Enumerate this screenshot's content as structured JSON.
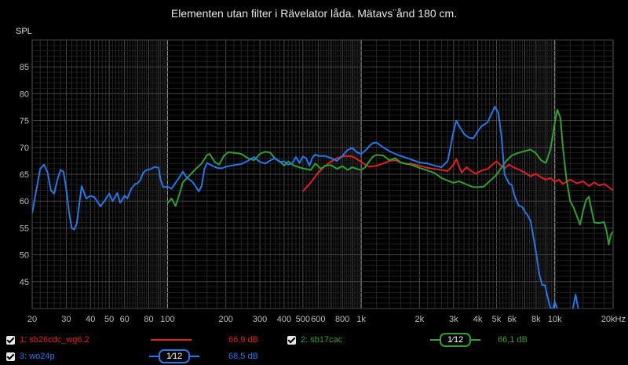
{
  "chart_data": {
    "type": "line",
    "title": "Elementen utan filter i Rävelator låda. Mätavs¨ånd 180 cm.",
    "ylabel": "SPL",
    "xlabel": "",
    "x_scale": "log",
    "xlim": [
      20,
      20000
    ],
    "ylim": [
      40,
      90
    ],
    "grid": true,
    "y_ticks": [
      45,
      50,
      55,
      60,
      65,
      70,
      75,
      80,
      85
    ],
    "x_ticks": [
      {
        "v": 20,
        "l": "20"
      },
      {
        "v": 30,
        "l": "30"
      },
      {
        "v": 40,
        "l": "40"
      },
      {
        "v": 50,
        "l": "50"
      },
      {
        "v": 60,
        "l": "60"
      },
      {
        "v": 80,
        "l": "80"
      },
      {
        "v": 100,
        "l": "100"
      },
      {
        "v": 200,
        "l": "200"
      },
      {
        "v": 300,
        "l": "300"
      },
      {
        "v": 400,
        "l": "400"
      },
      {
        "v": 500,
        "l": "500"
      },
      {
        "v": 600,
        "l": "600"
      },
      {
        "v": 800,
        "l": "800"
      },
      {
        "v": 1000,
        "l": "1k"
      },
      {
        "v": 2000,
        "l": "2k"
      },
      {
        "v": 3000,
        "l": "3k"
      },
      {
        "v": 4000,
        "l": "4k"
      },
      {
        "v": 5000,
        "l": "5k"
      },
      {
        "v": 6000,
        "l": "6k"
      },
      {
        "v": 8000,
        "l": "8k"
      },
      {
        "v": 10000,
        "l": "10k"
      },
      {
        "v": 20000,
        "l": "20kHz"
      }
    ],
    "series": [
      {
        "name": "1: sb26cdc_wg6.2",
        "color": "#e02020",
        "avg": "66,9 dB",
        "smoothing": "",
        "points": [
          [
            500,
            61.8
          ],
          [
            550,
            63.5
          ],
          [
            600,
            65.3
          ],
          [
            650,
            66.5
          ],
          [
            700,
            67.4
          ],
          [
            750,
            68.0
          ],
          [
            800,
            68.3
          ],
          [
            850,
            68.4
          ],
          [
            900,
            68.3
          ],
          [
            950,
            67.8
          ],
          [
            1000,
            67.3
          ],
          [
            1050,
            66.8
          ],
          [
            1100,
            66.4
          ],
          [
            1200,
            66.6
          ],
          [
            1300,
            67.0
          ],
          [
            1400,
            67.5
          ],
          [
            1500,
            67.6
          ],
          [
            1600,
            67.2
          ],
          [
            1700,
            66.9
          ],
          [
            1800,
            67.0
          ],
          [
            2000,
            66.6
          ],
          [
            2200,
            66.2
          ],
          [
            2400,
            66.0
          ],
          [
            2600,
            65.8
          ],
          [
            2800,
            65.6
          ],
          [
            3000,
            66.8
          ],
          [
            3100,
            67.8
          ],
          [
            3200,
            66.5
          ],
          [
            3300,
            65.3
          ],
          [
            3500,
            66.3
          ],
          [
            3700,
            65.6
          ],
          [
            3900,
            65.1
          ],
          [
            4200,
            65.7
          ],
          [
            4500,
            66.0
          ],
          [
            4800,
            66.9
          ],
          [
            5000,
            67.4
          ],
          [
            5200,
            66.8
          ],
          [
            5500,
            66.1
          ],
          [
            5800,
            66.8
          ],
          [
            6200,
            66.2
          ],
          [
            6600,
            65.8
          ],
          [
            7000,
            65.3
          ],
          [
            7500,
            64.6
          ],
          [
            8000,
            65.1
          ],
          [
            8500,
            64.4
          ],
          [
            9000,
            64.0
          ],
          [
            9500,
            64.3
          ],
          [
            10000,
            63.6
          ],
          [
            10500,
            64.0
          ],
          [
            11000,
            63.2
          ],
          [
            12000,
            64.0
          ],
          [
            13000,
            63.3
          ],
          [
            14000,
            63.7
          ],
          [
            15000,
            62.8
          ],
          [
            16000,
            63.5
          ],
          [
            17000,
            62.9
          ],
          [
            18000,
            63.2
          ],
          [
            19000,
            62.6
          ],
          [
            20000,
            62.0
          ]
        ]
      },
      {
        "name": "2: sb17cac",
        "color": "#2ea02e",
        "avg": "66,1 dB",
        "smoothing": "1⁄12",
        "points": [
          [
            100,
            59.6
          ],
          [
            105,
            60.5
          ],
          [
            110,
            59.1
          ],
          [
            115,
            61.2
          ],
          [
            120,
            63.5
          ],
          [
            130,
            64.8
          ],
          [
            140,
            66.0
          ],
          [
            150,
            67.0
          ],
          [
            160,
            68.6
          ],
          [
            165,
            68.8
          ],
          [
            175,
            67.3
          ],
          [
            185,
            66.8
          ],
          [
            195,
            68.4
          ],
          [
            205,
            69.1
          ],
          [
            220,
            69.0
          ],
          [
            240,
            68.8
          ],
          [
            260,
            68.0
          ],
          [
            280,
            67.6
          ],
          [
            300,
            68.8
          ],
          [
            320,
            69.2
          ],
          [
            340,
            69.0
          ],
          [
            360,
            67.9
          ],
          [
            380,
            67.4
          ],
          [
            400,
            66.6
          ],
          [
            420,
            67.4
          ],
          [
            450,
            66.6
          ],
          [
            500,
            66.1
          ],
          [
            550,
            65.8
          ],
          [
            580,
            67.0
          ],
          [
            620,
            66.0
          ],
          [
            650,
            66.6
          ],
          [
            700,
            66.7
          ],
          [
            750,
            66.0
          ],
          [
            800,
            66.5
          ],
          [
            850,
            65.8
          ],
          [
            900,
            66.3
          ],
          [
            950,
            66.0
          ],
          [
            1000,
            65.8
          ],
          [
            1050,
            66.3
          ],
          [
            1100,
            67.4
          ],
          [
            1150,
            68.3
          ],
          [
            1200,
            68.6
          ],
          [
            1300,
            68.5
          ],
          [
            1400,
            67.6
          ],
          [
            1500,
            68.0
          ],
          [
            1600,
            67.2
          ],
          [
            1800,
            66.8
          ],
          [
            2000,
            66.2
          ],
          [
            2200,
            65.7
          ],
          [
            2400,
            65.2
          ],
          [
            2600,
            64.3
          ],
          [
            2800,
            63.8
          ],
          [
            3000,
            63.4
          ],
          [
            3200,
            63.7
          ],
          [
            3500,
            63.1
          ],
          [
            3800,
            62.6
          ],
          [
            4000,
            62.6
          ],
          [
            4300,
            62.7
          ],
          [
            4600,
            63.7
          ],
          [
            5000,
            64.9
          ],
          [
            5300,
            66.2
          ],
          [
            5600,
            67.4
          ],
          [
            6000,
            68.5
          ],
          [
            6500,
            69.0
          ],
          [
            7000,
            69.3
          ],
          [
            7500,
            69.6
          ],
          [
            8000,
            68.9
          ],
          [
            8500,
            67.6
          ],
          [
            9000,
            67.1
          ],
          [
            9500,
            69.7
          ],
          [
            10000,
            74.5
          ],
          [
            10300,
            77.0
          ],
          [
            10700,
            75.5
          ],
          [
            11000,
            70.0
          ],
          [
            11500,
            64.0
          ],
          [
            12000,
            60.0
          ],
          [
            12500,
            58.8
          ],
          [
            13000,
            57.2
          ],
          [
            13500,
            55.6
          ],
          [
            14000,
            58.2
          ],
          [
            14500,
            60.2
          ],
          [
            15000,
            60.8
          ],
          [
            15500,
            58.2
          ],
          [
            16000,
            56.0
          ],
          [
            17000,
            55.9
          ],
          [
            18000,
            56.1
          ],
          [
            18500,
            54.5
          ],
          [
            19000,
            51.9
          ],
          [
            19500,
            53.8
          ],
          [
            20000,
            54.3
          ]
        ]
      },
      {
        "name": "3: wo24p",
        "color": "#2278e8",
        "avg": "68,5 dB",
        "smoothing": "1⁄12",
        "points": [
          [
            20,
            57.8
          ],
          [
            21,
            62.0
          ],
          [
            22,
            66.0
          ],
          [
            23,
            66.8
          ],
          [
            24,
            65.4
          ],
          [
            25,
            62.0
          ],
          [
            26,
            61.4
          ],
          [
            27,
            64.0
          ],
          [
            28,
            65.8
          ],
          [
            29,
            65.5
          ],
          [
            30,
            62.3
          ],
          [
            31,
            58.0
          ],
          [
            32,
            55.0
          ],
          [
            33,
            54.7
          ],
          [
            34,
            55.8
          ],
          [
            36,
            62.8
          ],
          [
            38,
            60.5
          ],
          [
            40,
            61.0
          ],
          [
            42,
            60.7
          ],
          [
            45,
            59.0
          ],
          [
            47,
            59.9
          ],
          [
            50,
            61.4
          ],
          [
            52,
            60.0
          ],
          [
            55,
            61.5
          ],
          [
            57,
            59.7
          ],
          [
            60,
            61.0
          ],
          [
            62,
            60.5
          ],
          [
            65,
            62.3
          ],
          [
            68,
            63.2
          ],
          [
            70,
            63.3
          ],
          [
            72,
            63.8
          ],
          [
            75,
            65.3
          ],
          [
            78,
            65.8
          ],
          [
            82,
            66.0
          ],
          [
            86,
            66.4
          ],
          [
            90,
            66.2
          ],
          [
            92,
            64.0
          ],
          [
            95,
            62.6
          ],
          [
            98,
            62.6
          ],
          [
            100,
            62.7
          ],
          [
            105,
            62.3
          ],
          [
            110,
            63.4
          ],
          [
            115,
            64.4
          ],
          [
            120,
            65.5
          ],
          [
            125,
            64.5
          ],
          [
            130,
            64.0
          ],
          [
            135,
            63.5
          ],
          [
            140,
            62.7
          ],
          [
            145,
            61.8
          ],
          [
            150,
            62.8
          ],
          [
            155,
            66.0
          ],
          [
            160,
            67.1
          ],
          [
            170,
            66.6
          ],
          [
            180,
            66.2
          ],
          [
            190,
            66.1
          ],
          [
            200,
            66.4
          ],
          [
            220,
            66.7
          ],
          [
            240,
            66.9
          ],
          [
            260,
            67.5
          ],
          [
            280,
            68.2
          ],
          [
            300,
            67.3
          ],
          [
            320,
            67.0
          ],
          [
            340,
            67.6
          ],
          [
            360,
            68.0
          ],
          [
            380,
            67.3
          ],
          [
            400,
            67.4
          ],
          [
            420,
            66.8
          ],
          [
            440,
            67.0
          ],
          [
            460,
            68.2
          ],
          [
            480,
            67.1
          ],
          [
            500,
            68.3
          ],
          [
            520,
            68.0
          ],
          [
            540,
            66.6
          ],
          [
            560,
            68.1
          ],
          [
            580,
            68.7
          ],
          [
            600,
            68.4
          ],
          [
            650,
            68.4
          ],
          [
            700,
            68.0
          ],
          [
            750,
            67.5
          ],
          [
            800,
            68.4
          ],
          [
            850,
            69.5
          ],
          [
            900,
            69.9
          ],
          [
            950,
            69.1
          ],
          [
            1000,
            68.8
          ],
          [
            1050,
            69.4
          ],
          [
            1100,
            70.2
          ],
          [
            1150,
            70.8
          ],
          [
            1200,
            70.9
          ],
          [
            1300,
            70.0
          ],
          [
            1400,
            69.3
          ],
          [
            1500,
            68.8
          ],
          [
            1600,
            68.4
          ],
          [
            1800,
            67.8
          ],
          [
            2000,
            67.2
          ],
          [
            2200,
            67.0
          ],
          [
            2400,
            66.6
          ],
          [
            2600,
            66.3
          ],
          [
            2800,
            67.5
          ],
          [
            3000,
            73.0
          ],
          [
            3100,
            75.0
          ],
          [
            3200,
            74.0
          ],
          [
            3400,
            72.5
          ],
          [
            3600,
            71.8
          ],
          [
            3800,
            71.7
          ],
          [
            4000,
            73.0
          ],
          [
            4200,
            74.0
          ],
          [
            4500,
            74.7
          ],
          [
            4700,
            76.2
          ],
          [
            4900,
            77.6
          ],
          [
            5100,
            76.5
          ],
          [
            5300,
            72.3
          ],
          [
            5500,
            65.0
          ],
          [
            5800,
            63.3
          ],
          [
            6000,
            63.0
          ],
          [
            6200,
            61.0
          ],
          [
            6500,
            59.2
          ],
          [
            6800,
            58.9
          ],
          [
            7000,
            58.0
          ],
          [
            7200,
            57.5
          ],
          [
            7500,
            56.3
          ],
          [
            7700,
            54.0
          ],
          [
            8000,
            50.5
          ],
          [
            8300,
            46.5
          ],
          [
            8600,
            44.4
          ],
          [
            8900,
            44.3
          ],
          [
            9200,
            42.0
          ],
          [
            9500,
            40.0
          ]
        ]
      },
      {
        "name": "3: wo24p",
        "color": "#2278e8",
        "avg": "",
        "smoothing": "",
        "points": [
          [
            9500,
            40.0
          ],
          [
            9800,
            40.0
          ],
          [
            10000,
            41.2
          ],
          [
            10300,
            40.0
          ]
        ]
      },
      {
        "name": "3: wo24p",
        "color": "#2278e8",
        "avg": "",
        "smoothing": "",
        "points": [
          [
            12400,
            40.0
          ],
          [
            12800,
            42.6
          ],
          [
            13200,
            40.0
          ]
        ]
      }
    ]
  },
  "legend": [
    {
      "name": "1: sb26cdc_wg6.2",
      "color": "#e02020",
      "avg": "66,9 dB",
      "smoothing": ""
    },
    {
      "name": "2: sb17cac",
      "color": "#2ea02e",
      "avg": "66,1 dB",
      "smoothing": "1⁄12"
    },
    {
      "name": "3: wo24p",
      "color": "#2278e8",
      "avg": "68,5 dB",
      "smoothing": "1⁄12"
    }
  ]
}
